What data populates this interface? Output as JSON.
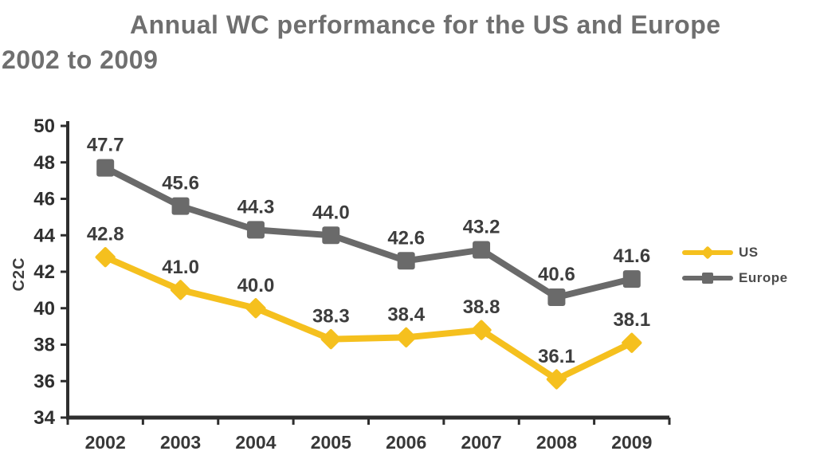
{
  "title": {
    "line1": "Annual WC performance for the US and Europe",
    "line2": "2002 to 2009"
  },
  "chart_data": {
    "type": "line",
    "title": "Annual WC performance for the US and Europe 2002 to 2009",
    "categories": [
      "2002",
      "2003",
      "2004",
      "2005",
      "2006",
      "2007",
      "2008",
      "2009"
    ],
    "series": [
      {
        "name": "US",
        "color": "#f5c01e",
        "marker": "diamond",
        "values": [
          42.8,
          41.0,
          40.0,
          38.3,
          38.4,
          38.8,
          36.1,
          38.1
        ]
      },
      {
        "name": "Europe",
        "color": "#6a6a6a",
        "marker": "square",
        "values": [
          47.7,
          45.6,
          44.3,
          44.0,
          42.6,
          43.2,
          40.6,
          41.6
        ]
      }
    ],
    "xlabel": "",
    "ylabel": "C2C",
    "ylim": [
      34,
      50
    ],
    "ytick_step": 2,
    "grid": false,
    "data_labels": true,
    "legend_position": "right",
    "axis_color": "#2e2e2e",
    "label_color": "#3d3d3d"
  }
}
